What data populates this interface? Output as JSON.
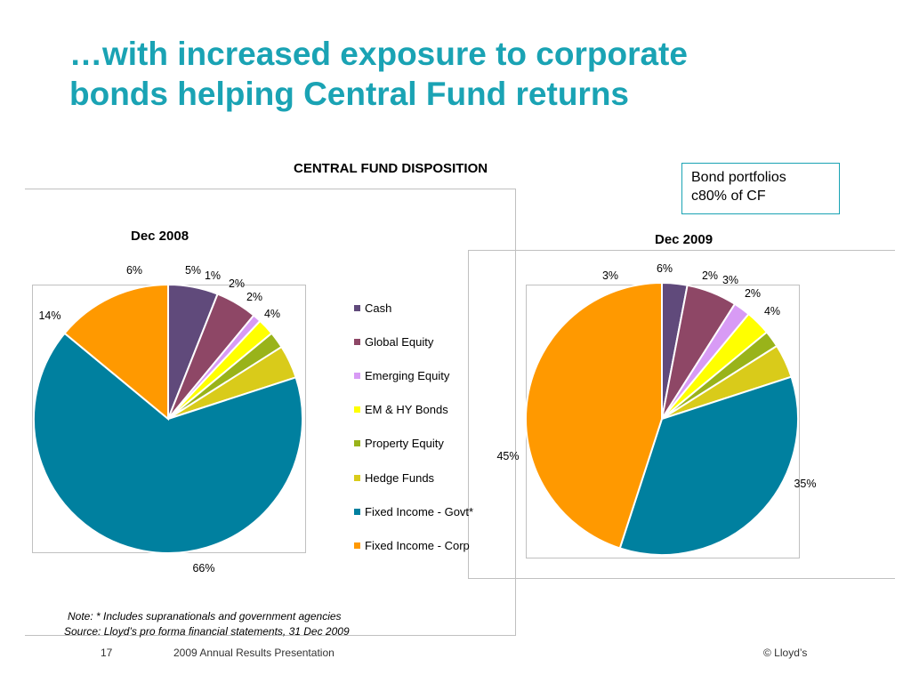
{
  "title": {
    "line1": "…with increased exposure to corporate",
    "line2": "bonds helping Central Fund returns"
  },
  "chart_heading": "CENTRAL FUND DISPOSITION",
  "callout": {
    "line1": "Bond portfolios",
    "line2": "c80% of CF"
  },
  "legend": [
    {
      "label": "Cash",
      "color": "#604a7b"
    },
    {
      "label": "Global Equity",
      "color": "#8e4766"
    },
    {
      "label": "Emerging Equity",
      "color": "#d89bf5"
    },
    {
      "label": "EM & HY Bonds",
      "color": "#ffff00"
    },
    {
      "label": "Property Equity",
      "color": "#99b31a"
    },
    {
      "label": "Hedge Funds",
      "color": "#d9cb1a"
    },
    {
      "label": "Fixed Income - Govt*",
      "color": "#00809f"
    },
    {
      "label": "Fixed Income - Corp",
      "color": "#ff9900"
    }
  ],
  "chart_data": [
    {
      "type": "pie",
      "title": "Dec 2008",
      "categories": [
        "Cash",
        "Global Equity",
        "Emerging Equity",
        "EM & HY Bonds",
        "Property Equity",
        "Hedge Funds",
        "Fixed Income - Govt*",
        "Fixed Income - Corp"
      ],
      "values": [
        6,
        5,
        1,
        2,
        2,
        4,
        66,
        14
      ],
      "labels": [
        "6%",
        "5%",
        "1%",
        "2%",
        "2%",
        "4%",
        "66%",
        "14%"
      ]
    },
    {
      "type": "pie",
      "title": "Dec 2009",
      "categories": [
        "Cash",
        "Global Equity",
        "Emerging Equity",
        "EM & HY Bonds",
        "Property Equity",
        "Hedge Funds",
        "Fixed Income - Govt*",
        "Fixed Income - Corp"
      ],
      "values": [
        3,
        6,
        2,
        3,
        2,
        4,
        35,
        45
      ],
      "labels": [
        "3%",
        "6%",
        "2%",
        "3%",
        "2%",
        "4%",
        "35%",
        "45%"
      ]
    }
  ],
  "note": {
    "line1": "Note: * Includes supranationals and government agencies",
    "line2": "Source: Lloyd’s pro forma financial statements, 31 Dec 2009"
  },
  "footer": {
    "page": "17",
    "doc": "2009 Annual Results Presentation",
    "copyright": "© Lloyd’s"
  }
}
